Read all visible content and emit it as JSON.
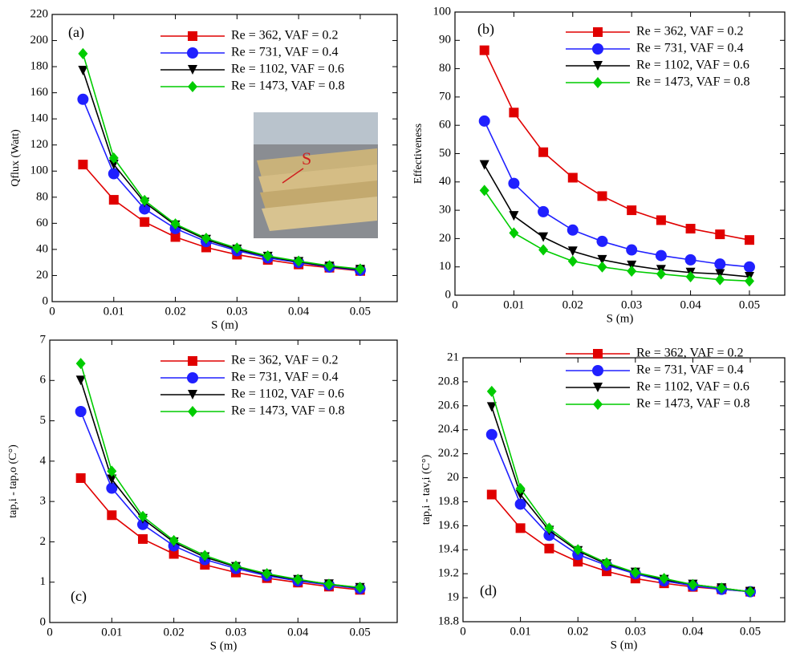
{
  "chart_data": [
    {
      "type": "line",
      "annotation": "(a)",
      "y_label": "Qflux (Watt)",
      "x_label": "S (m)",
      "inset_label": "S",
      "x": [
        0.005,
        0.01,
        0.015,
        0.02,
        0.025,
        0.03,
        0.035,
        0.04,
        0.045,
        0.05
      ],
      "xlim": [
        0,
        0.056
      ],
      "xticks": [
        0,
        0.01,
        0.02,
        0.03,
        0.04,
        0.05
      ],
      "ylim": [
        0,
        220
      ],
      "yticks": [
        0,
        20,
        40,
        60,
        80,
        100,
        120,
        140,
        160,
        180,
        200,
        220
      ],
      "legend": "upper right",
      "series": [
        {
          "name": "Re = 362, VAF = 0.2",
          "color": "#e00000",
          "marker": "square",
          "values": [
            105,
            78,
            61,
            49.5,
            41.5,
            36,
            32,
            28.5,
            26,
            23.5
          ]
        },
        {
          "name": "Re = 731, VAF = 0.4",
          "color": "#2020ff",
          "marker": "circle",
          "values": [
            155,
            98,
            71,
            56,
            46,
            39,
            33.5,
            30,
            26.5,
            24
          ]
        },
        {
          "name": "Re = 1102, VAF = 0.6",
          "color": "#000000",
          "marker": "triangle-down",
          "values": [
            177,
            105,
            76,
            58.5,
            47.5,
            40,
            34.5,
            30.5,
            27,
            24.5
          ]
        },
        {
          "name": "Re = 1473, VAF = 0.8",
          "color": "#00cc00",
          "marker": "diamond",
          "values": [
            190,
            110,
            77.5,
            59.5,
            48.5,
            41,
            35,
            31,
            27.5,
            25
          ]
        }
      ]
    },
    {
      "type": "line",
      "annotation": "(b)",
      "y_label": "Effectiveness",
      "x_label": "S (m)",
      "x": [
        0.005,
        0.01,
        0.015,
        0.02,
        0.025,
        0.03,
        0.035,
        0.04,
        0.045,
        0.05
      ],
      "xlim": [
        0,
        0.056
      ],
      "xticks": [
        0,
        0.01,
        0.02,
        0.03,
        0.04,
        0.05
      ],
      "ylim": [
        0,
        100
      ],
      "yticks": [
        0,
        10,
        20,
        30,
        40,
        50,
        60,
        70,
        80,
        90,
        100
      ],
      "legend": "upper right",
      "series": [
        {
          "name": "Re = 362, VAF = 0.2",
          "color": "#e00000",
          "marker": "square",
          "values": [
            86.5,
            64.5,
            50.5,
            41.5,
            35,
            30,
            26.5,
            23.5,
            21.5,
            19.5
          ]
        },
        {
          "name": "Re = 731, VAF = 0.4",
          "color": "#2020ff",
          "marker": "circle",
          "values": [
            61.5,
            39.5,
            29.5,
            23,
            19,
            16,
            14,
            12.5,
            11,
            10
          ]
        },
        {
          "name": "Re = 1102, VAF = 0.6",
          "color": "#000000",
          "marker": "triangle-down",
          "values": [
            46,
            28,
            20.5,
            15.5,
            12.5,
            10.5,
            9,
            8,
            7.5,
            6.5
          ]
        },
        {
          "name": "Re = 1473, VAF = 0.8",
          "color": "#00cc00",
          "marker": "diamond",
          "values": [
            37,
            22,
            16,
            12,
            10,
            8.5,
            7.5,
            6.5,
            5.5,
            5
          ]
        }
      ]
    },
    {
      "type": "line",
      "annotation": "(c)",
      "y_label": "tap,i - tap,o (C°)",
      "x_label": "S (m)",
      "x": [
        0.005,
        0.01,
        0.015,
        0.02,
        0.025,
        0.03,
        0.035,
        0.04,
        0.045,
        0.05
      ],
      "xlim": [
        0,
        0.056
      ],
      "xticks": [
        0,
        0.01,
        0.02,
        0.03,
        0.04,
        0.05
      ],
      "ylim": [
        0,
        7
      ],
      "yticks": [
        0,
        1,
        2,
        3,
        4,
        5,
        6,
        7
      ],
      "legend": "upper right",
      "series": [
        {
          "name": "Re = 362, VAF = 0.2",
          "color": "#e00000",
          "marker": "square",
          "values": [
            3.58,
            2.66,
            2.07,
            1.7,
            1.43,
            1.24,
            1.1,
            0.99,
            0.89,
            0.81
          ]
        },
        {
          "name": "Re = 731, VAF = 0.4",
          "color": "#2020ff",
          "marker": "circle",
          "values": [
            5.23,
            3.33,
            2.43,
            1.9,
            1.56,
            1.34,
            1.16,
            1.03,
            0.93,
            0.84
          ]
        },
        {
          "name": "Re = 1102, VAF = 0.6",
          "color": "#000000",
          "marker": "triangle-down",
          "values": [
            6.0,
            3.55,
            2.57,
            1.99,
            1.62,
            1.38,
            1.19,
            1.06,
            0.95,
            0.86
          ]
        },
        {
          "name": "Re = 1473, VAF = 0.8",
          "color": "#00cc00",
          "marker": "diamond",
          "values": [
            6.42,
            3.75,
            2.63,
            2.03,
            1.66,
            1.4,
            1.21,
            1.07,
            0.95,
            0.87
          ]
        }
      ]
    },
    {
      "type": "line",
      "annotation": "(d)",
      "y_label": "tap,i - tav,i (C°)",
      "x_label": "S (m)",
      "x": [
        0.005,
        0.01,
        0.015,
        0.02,
        0.025,
        0.03,
        0.035,
        0.04,
        0.045,
        0.05
      ],
      "xlim": [
        0,
        0.056
      ],
      "xticks": [
        0,
        0.01,
        0.02,
        0.03,
        0.04,
        0.05
      ],
      "ylim": [
        18.8,
        21
      ],
      "yticks": [
        18.8,
        19,
        19.2,
        19.4,
        19.6,
        19.8,
        20,
        20.2,
        20.4,
        20.6,
        20.8,
        21
      ],
      "legend": "upper right",
      "series": [
        {
          "name": "Re = 362, VAF = 0.2",
          "color": "#e00000",
          "marker": "square",
          "values": [
            19.86,
            19.58,
            19.41,
            19.3,
            19.22,
            19.16,
            19.12,
            19.09,
            19.07,
            19.05
          ]
        },
        {
          "name": "Re = 731, VAF = 0.4",
          "color": "#2020ff",
          "marker": "circle",
          "values": [
            20.36,
            19.78,
            19.52,
            19.36,
            19.27,
            19.2,
            19.14,
            19.1,
            19.07,
            19.05
          ]
        },
        {
          "name": "Re = 1102, VAF = 0.6",
          "color": "#000000",
          "marker": "triangle-down",
          "values": [
            20.59,
            19.86,
            19.56,
            19.39,
            19.28,
            19.21,
            19.15,
            19.11,
            19.08,
            19.05
          ]
        },
        {
          "name": "Re = 1473, VAF = 0.8",
          "color": "#00cc00",
          "marker": "diamond",
          "values": [
            20.72,
            19.91,
            19.58,
            19.4,
            19.29,
            19.21,
            19.16,
            19.11,
            19.08,
            19.05
          ]
        }
      ]
    }
  ]
}
